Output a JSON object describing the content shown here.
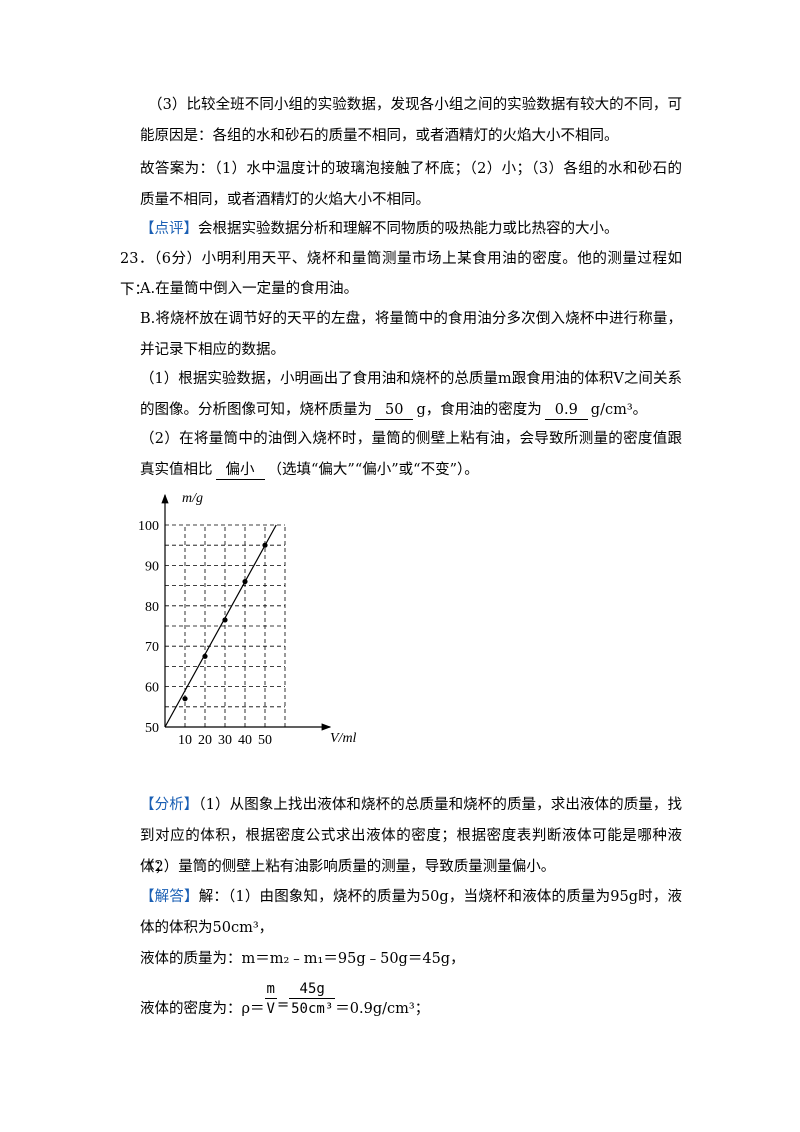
{
  "solution_prev": {
    "reason": "（3）比较全班不同小组的实验数据，发现各小组之间的实验数据有较大的不同，可能原因是：各组的水和砂石的质量不相同，或者酒精灯的火焰大小不相同。",
    "answer": "故答案为：（1）水中温度计的玻璃泡接触了杯底；（2）小；（3）各组的水和砂石的质量不相同，或者酒精灯的火焰大小不相同。"
  },
  "comment": {
    "tag": "【点评】",
    "text": "会根据实验数据分析和理解不同物质的吸热能力或比热容的大小。"
  },
  "question": {
    "number": "23．",
    "stem": "（6分）小明利用天平、烧杯和量筒测量市场上某食用油的密度。他的测量过程如下：",
    "step_a": "A.在量筒中倒入一定量的食用油。",
    "step_b": "B.将烧杯放在调节好的天平的左盘，将量筒中的食用油分多次倒入烧杯中进行称量，并记录下相应的数据。",
    "part1": {
      "pre": "（1）根据实验数据，小明画出了食用油和烧杯的总质量m跟食用油的体积V之间关系的图像。分析图像可知，烧杯质量为",
      "blank1": "50",
      "mid": "g，食用油的密度为",
      "blank2": "0.9",
      "post": "g/cm³。"
    },
    "part2": {
      "pre": "（2）在将量筒中的油倒入烧杯时，量筒的侧壁上粘有油，会导致所测量的密度值跟真实值相比",
      "blank": "偏小",
      "post": "（选填“偏大”“偏小”或“不变”）。"
    }
  },
  "chart_data": {
    "type": "scatter",
    "y_label": "m/g",
    "x_label": "V/ml",
    "xlim": [
      0,
      60
    ],
    "ylim": [
      50,
      100
    ],
    "xticks": [
      10,
      20,
      30,
      40,
      50
    ],
    "yticks": [
      50,
      60,
      70,
      80,
      90,
      100
    ],
    "x_grid": [
      10,
      20,
      30,
      40,
      50,
      60
    ],
    "y_grid": [
      55,
      60,
      65,
      70,
      75,
      80,
      85,
      90,
      95,
      100
    ],
    "x": [
      10,
      20,
      30,
      40,
      50
    ],
    "values": [
      57,
      67.5,
      76.5,
      86,
      95
    ],
    "color": "#000000",
    "fit_line": {
      "x": [
        0,
        55.6
      ],
      "y": [
        50,
        100
      ]
    }
  },
  "analysis": {
    "tag": "【分析】",
    "lines": [
      "（1）从图象上找出液体和烧杯的总质量和烧杯的质量，求出液体的质量，找到对应的体积，根据密度公式求出液体的密度；根据密度表判断液体可能是哪种液体；",
      "（2）量筒的侧壁上粘有油影响质量的测量，导致质量测量偏小。"
    ]
  },
  "answer": {
    "tag": "【解答】",
    "text": "解：（1）由图象知，烧杯的质量为50g，当烧杯和液体的质量为95g时，液体的体积为50cm³，",
    "mass": "液体的质量为：m＝m₂﹣m₁＝95g﹣50g＝45g，",
    "density": {
      "label": "液体的密度为：ρ＝",
      "frac1_num": "m",
      "frac1_den": "V",
      "equals": "=",
      "frac2_num": "45g",
      "frac2_den": "50cm³",
      "result": "＝0.9g/cm³；"
    }
  }
}
